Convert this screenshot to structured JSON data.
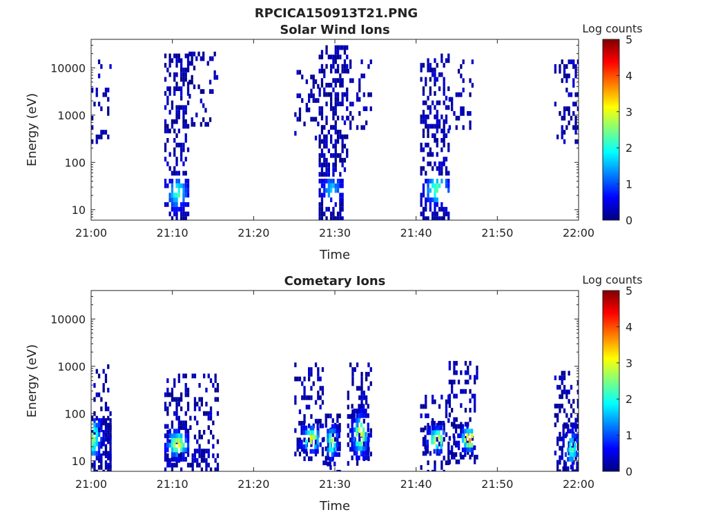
{
  "figure": {
    "title": "RPCICA150913T21.PNG"
  },
  "colormap": {
    "name": "jet",
    "stops": [
      "#00007f",
      "#0000ff",
      "#007fff",
      "#00ffff",
      "#7fff7f",
      "#ffff00",
      "#ff7f00",
      "#ff0000",
      "#7f0000"
    ]
  },
  "chart_data": [
    {
      "type": "heatmap",
      "title": "Solar Wind Ions",
      "xlabel": "Time",
      "ylabel": "Energy (eV)",
      "xlim": [
        "21:00",
        "22:00"
      ],
      "xticks": [
        "21:00",
        "21:10",
        "21:20",
        "21:30",
        "21:40",
        "21:50",
        "22:00"
      ],
      "ylim": [
        6,
        40000
      ],
      "yscale": "log",
      "yticks": [
        10,
        100,
        1000,
        10000
      ],
      "ytick_labels": [
        "10",
        "100",
        "1000",
        "10000"
      ],
      "colorbar": {
        "label": "Log counts",
        "range": [
          0,
          5
        ],
        "ticks": [
          "0",
          "1",
          "2",
          "3",
          "4",
          "5"
        ]
      },
      "bursts": [
        {
          "start": "21:00",
          "end": "21:02.5",
          "emin": 300,
          "emax": 15000,
          "density": 0.22,
          "low_band": null
        },
        {
          "start": "21:09",
          "end": "21:12",
          "emin": 60,
          "emax": 20000,
          "density": 0.42,
          "low_band": {
            "emin": 6,
            "emax": 45,
            "start": "21:09",
            "end": "21:12",
            "peak_time": "21:10.5",
            "peak_energy": 25,
            "peak_log_counts": 2.0
          }
        },
        {
          "start": "21:12",
          "end": "21:15.5",
          "emin": 600,
          "emax": 22000,
          "density": 0.2,
          "low_band": null
        },
        {
          "start": "21:25",
          "end": "21:28",
          "emin": 300,
          "emax": 9000,
          "density": 0.22,
          "low_band": null
        },
        {
          "start": "21:28",
          "end": "21:31.5",
          "emin": 60,
          "emax": 30000,
          "density": 0.45,
          "low_band": {
            "emin": 6,
            "emax": 45,
            "start": "21:28",
            "end": "21:31",
            "peak_time": "21:29.5",
            "peak_energy": 30,
            "peak_log_counts": 1.4
          }
        },
        {
          "start": "21:31.5",
          "end": "21:34.5",
          "emin": 500,
          "emax": 15000,
          "density": 0.18,
          "low_band": null
        },
        {
          "start": "21:40.5",
          "end": "21:44",
          "emin": 60,
          "emax": 20000,
          "density": 0.42,
          "low_band": {
            "emin": 6,
            "emax": 45,
            "start": "21:40.5",
            "end": "21:44",
            "peak_time": "21:42.5",
            "peak_energy": 30,
            "peak_log_counts": 2.2
          }
        },
        {
          "start": "21:44",
          "end": "21:47",
          "emin": 500,
          "emax": 15000,
          "density": 0.18,
          "low_band": null
        },
        {
          "start": "21:57",
          "end": "22:00",
          "emin": 300,
          "emax": 15000,
          "density": 0.25,
          "low_band": null
        }
      ]
    },
    {
      "type": "heatmap",
      "title": "Cometary Ions",
      "xlabel": "Time",
      "ylabel": "Energy (eV)",
      "xlim": [
        "21:00",
        "22:00"
      ],
      "xticks": [
        "21:00",
        "21:10",
        "21:20",
        "21:30",
        "21:40",
        "21:50",
        "22:00"
      ],
      "ylim": [
        6,
        40000
      ],
      "yscale": "log",
      "yticks": [
        10,
        100,
        1000,
        10000
      ],
      "ytick_labels": [
        "10",
        "100",
        "1000",
        "10000"
      ],
      "colorbar": {
        "label": "Log counts",
        "range": [
          0,
          5
        ],
        "ticks": [
          "0",
          "1",
          "2",
          "3",
          "4",
          "5"
        ]
      },
      "bursts": [
        {
          "start": "21:00",
          "end": "21:02.5",
          "emin": 6,
          "emax": 1100,
          "density": 0.3,
          "low_band": {
            "emin": 6,
            "emax": 80,
            "start": "21:00",
            "end": "21:02.5",
            "peak_time": "21:00",
            "peak_energy": 35,
            "peak_log_counts": 2.5
          }
        },
        {
          "start": "21:09",
          "end": "21:15.5",
          "emin": 6,
          "emax": 700,
          "density": 0.28,
          "low_band": {
            "emin": 12,
            "emax": 60,
            "start": "21:09",
            "end": "21:12",
            "peak_time": "21:10.5",
            "peak_energy": 25,
            "peak_log_counts": 3.0
          }
        },
        {
          "start": "21:25",
          "end": "21:28.5",
          "emin": 10,
          "emax": 1200,
          "density": 0.3,
          "low_band": {
            "emin": 15,
            "emax": 70,
            "start": "21:25.5",
            "end": "21:28",
            "peak_time": "21:27",
            "peak_energy": 32,
            "peak_log_counts": 3.0
          }
        },
        {
          "start": "21:28.5",
          "end": "21:30.5",
          "emin": 6,
          "emax": 100,
          "density": 0.35,
          "low_band": {
            "emin": 8,
            "emax": 60,
            "start": "21:29",
            "end": "21:30.5",
            "peak_time": "21:29.5",
            "peak_energy": 28,
            "peak_log_counts": 2.5
          }
        },
        {
          "start": "21:31.5",
          "end": "21:34.5",
          "emin": 8,
          "emax": 1200,
          "density": 0.3,
          "low_band": {
            "emin": 12,
            "emax": 160,
            "start": "21:32",
            "end": "21:34",
            "peak_time": "21:33",
            "peak_energy": 40,
            "peak_log_counts": 3.0
          }
        },
        {
          "start": "21:40.5",
          "end": "21:44",
          "emin": 6,
          "emax": 250,
          "density": 0.3,
          "low_band": {
            "emin": 15,
            "emax": 70,
            "start": "21:41",
            "end": "21:43.5",
            "peak_time": "21:42.5",
            "peak_energy": 32,
            "peak_log_counts": 3.0
          }
        },
        {
          "start": "21:44",
          "end": "21:47.5",
          "emin": 10,
          "emax": 1300,
          "density": 0.3,
          "low_band": {
            "emin": 15,
            "emax": 60,
            "start": "21:44.5",
            "end": "21:47",
            "peak_time": "21:46.5",
            "peak_energy": 32,
            "peak_log_counts": 3.7
          }
        },
        {
          "start": "21:57",
          "end": "22:00",
          "emin": 6,
          "emax": 800,
          "density": 0.3,
          "low_band": {
            "emin": 6,
            "emax": 60,
            "start": "21:58",
            "end": "22:00",
            "peak_time": "21:59",
            "peak_energy": 20,
            "peak_log_counts": 2.0
          }
        }
      ]
    }
  ]
}
